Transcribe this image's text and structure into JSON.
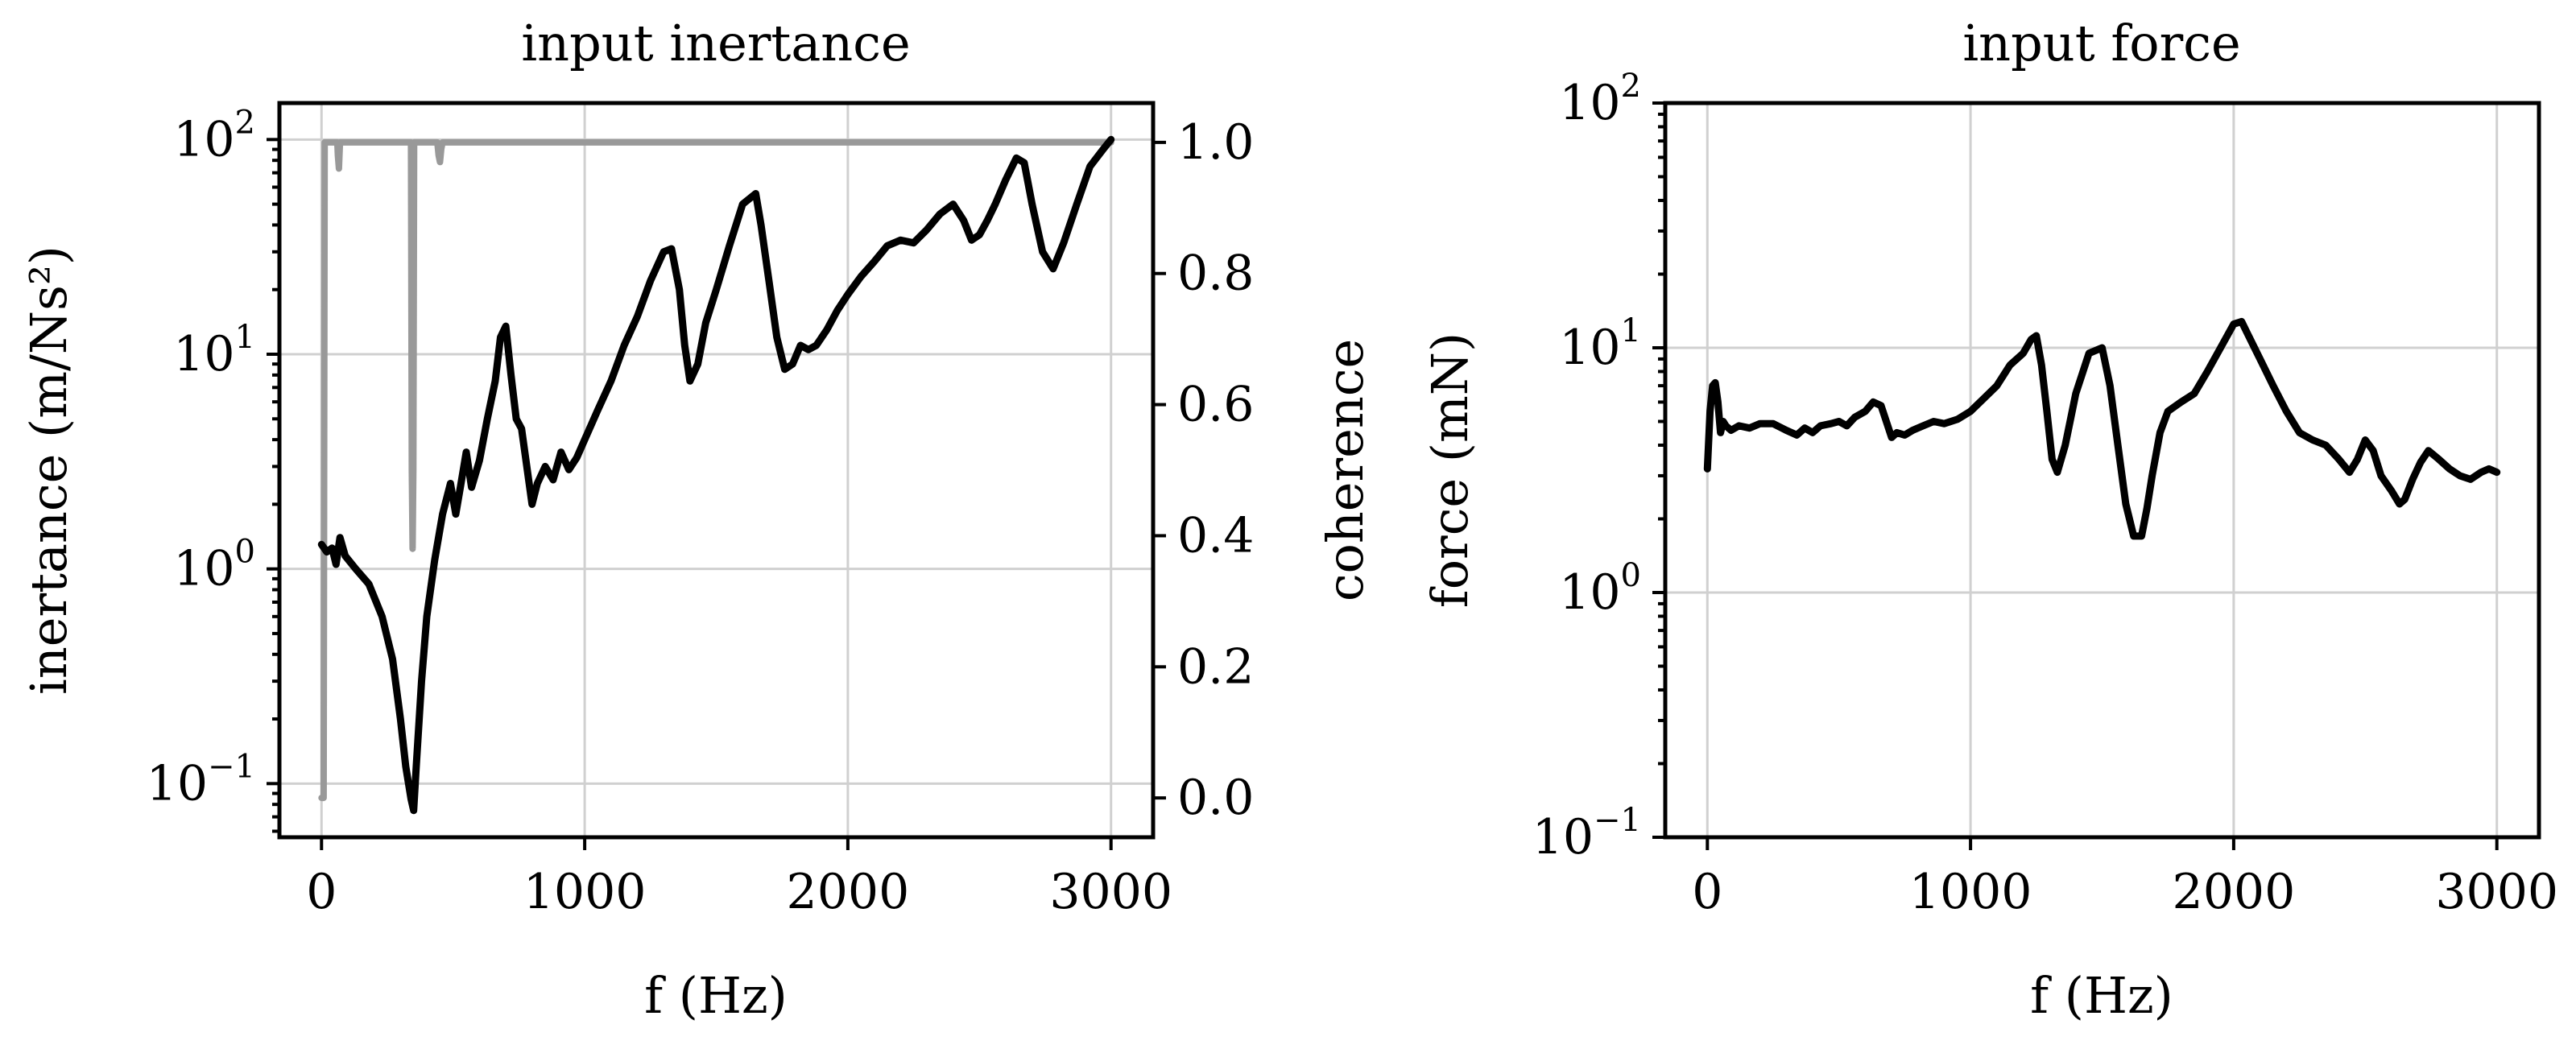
{
  "chart_data": [
    {
      "type": "line",
      "title": "input inertance",
      "xlabel": "f (Hz)",
      "ylabel": "inertance (m/Ns²)",
      "y2label": "coherence",
      "xlim": [
        -160,
        3160
      ],
      "ylim_log10": [
        -1.25,
        2.17
      ],
      "y2lim": [
        -0.06,
        1.06
      ],
      "yscale": "log",
      "grid": true,
      "xticks": [
        0,
        1000,
        2000,
        3000
      ],
      "xtick_labels": [
        "0",
        "1000",
        "2000",
        "3000"
      ],
      "yticks_log10": [
        -1,
        0,
        1,
        2
      ],
      "ytick_labels": [
        {
          "base": "10",
          "exp": "−1"
        },
        {
          "base": "10",
          "exp": "0"
        },
        {
          "base": "10",
          "exp": "1"
        },
        {
          "base": "10",
          "exp": "2"
        }
      ],
      "y2ticks": [
        0.0,
        0.2,
        0.4,
        0.6,
        0.8,
        1.0
      ],
      "y2tick_labels": [
        "0.0",
        "0.2",
        "0.4",
        "0.6",
        "0.8",
        "1.0"
      ],
      "series": [
        {
          "color": "#000000",
          "axis": "left",
          "x": [
            0,
            20,
            40,
            55,
            70,
            90,
            130,
            180,
            230,
            270,
            300,
            320,
            340,
            350,
            360,
            380,
            400,
            430,
            460,
            490,
            510,
            530,
            550,
            570,
            600,
            630,
            660,
            680,
            700,
            720,
            740,
            760,
            780,
            800,
            820,
            850,
            880,
            910,
            940,
            970,
            1000,
            1050,
            1100,
            1150,
            1200,
            1250,
            1300,
            1330,
            1360,
            1380,
            1400,
            1430,
            1460,
            1500,
            1550,
            1600,
            1650,
            1670,
            1700,
            1730,
            1760,
            1790,
            1820,
            1850,
            1880,
            1920,
            1960,
            2000,
            2050,
            2100,
            2150,
            2200,
            2250,
            2300,
            2350,
            2400,
            2440,
            2470,
            2500,
            2530,
            2560,
            2600,
            2640,
            2670,
            2700,
            2740,
            2780,
            2820,
            2870,
            2920,
            2970,
            3000
          ],
          "y": [
            1.3,
            1.2,
            1.25,
            1.05,
            1.4,
            1.15,
            1.0,
            0.85,
            0.6,
            0.38,
            0.2,
            0.12,
            0.085,
            0.075,
            0.12,
            0.3,
            0.6,
            1.1,
            1.8,
            2.5,
            1.8,
            2.5,
            3.5,
            2.4,
            3.2,
            5.0,
            7.5,
            12.0,
            13.5,
            8.0,
            5.0,
            4.5,
            3.0,
            2.0,
            2.5,
            3.0,
            2.6,
            3.5,
            2.9,
            3.3,
            4.0,
            5.5,
            7.5,
            11.0,
            15.0,
            22.0,
            30.0,
            31.0,
            20.0,
            11.0,
            7.5,
            9.0,
            14.0,
            20.0,
            32.0,
            50.0,
            56.0,
            40.0,
            22.0,
            12.0,
            8.5,
            9.0,
            11.0,
            10.5,
            11.0,
            13.0,
            16.0,
            19.0,
            23.0,
            27.0,
            32.0,
            34.0,
            33.0,
            38.0,
            45.0,
            50.0,
            42.0,
            34.0,
            36.0,
            42.0,
            50.0,
            65.0,
            82.0,
            78.0,
            50.0,
            30.0,
            25.0,
            33.0,
            50.0,
            75.0,
            90.0,
            100.0
          ]
        },
        {
          "color": "#999999",
          "axis": "right",
          "x": [
            0,
            8,
            12,
            60,
            62,
            66,
            70,
            300,
            340,
            343,
            346,
            349,
            352,
            356,
            360,
            440,
            445,
            450,
            455,
            460,
            3000
          ],
          "y": [
            0.0,
            0.0,
            1.0,
            1.0,
            0.98,
            0.96,
            1.0,
            1.0,
            1.0,
            0.5,
            0.38,
            0.5,
            1.0,
            1.0,
            1.0,
            1.0,
            0.98,
            0.97,
            0.99,
            1.0,
            1.0
          ]
        }
      ]
    },
    {
      "type": "line",
      "title": "input force",
      "xlabel": "f (Hz)",
      "ylabel": "force (mN)",
      "xlim": [
        -160,
        3160
      ],
      "ylim_log10": [
        -1,
        2
      ],
      "yscale": "log",
      "grid": true,
      "xticks": [
        0,
        1000,
        2000,
        3000
      ],
      "xtick_labels": [
        "0",
        "1000",
        "2000",
        "3000"
      ],
      "yticks_log10": [
        -1,
        0,
        1,
        2
      ],
      "ytick_labels": [
        {
          "base": "10",
          "exp": "−1"
        },
        {
          "base": "10",
          "exp": "0"
        },
        {
          "base": "10",
          "exp": "1"
        },
        {
          "base": "10",
          "exp": "2"
        }
      ],
      "series": [
        {
          "color": "#000000",
          "axis": "left",
          "x": [
            0,
            10,
            20,
            30,
            40,
            50,
            60,
            70,
            90,
            120,
            160,
            200,
            250,
            300,
            340,
            370,
            400,
            430,
            470,
            500,
            530,
            560,
            600,
            630,
            660,
            680,
            700,
            720,
            750,
            780,
            820,
            860,
            900,
            950,
            1000,
            1050,
            1100,
            1150,
            1200,
            1230,
            1250,
            1270,
            1290,
            1310,
            1330,
            1360,
            1400,
            1450,
            1500,
            1530,
            1560,
            1590,
            1620,
            1650,
            1670,
            1690,
            1720,
            1750,
            1800,
            1850,
            1900,
            1950,
            2000,
            2030,
            2060,
            2100,
            2150,
            2200,
            2250,
            2300,
            2350,
            2400,
            2440,
            2470,
            2500,
            2530,
            2560,
            2600,
            2630,
            2650,
            2680,
            2710,
            2740,
            2780,
            2820,
            2860,
            2900,
            2940,
            2970,
            3000
          ],
          "y": [
            3.2,
            5.5,
            7.0,
            7.2,
            6.0,
            4.5,
            5.0,
            4.8,
            4.6,
            4.8,
            4.7,
            4.9,
            4.9,
            4.6,
            4.4,
            4.7,
            4.5,
            4.8,
            4.9,
            5.0,
            4.8,
            5.2,
            5.5,
            6.0,
            5.8,
            5.0,
            4.3,
            4.5,
            4.4,
            4.6,
            4.8,
            5.0,
            4.9,
            5.1,
            5.5,
            6.2,
            7.0,
            8.5,
            9.5,
            10.8,
            11.2,
            8.5,
            5.5,
            3.5,
            3.1,
            4.0,
            6.5,
            9.5,
            10.0,
            7.0,
            4.0,
            2.3,
            1.7,
            1.7,
            2.2,
            3.0,
            4.5,
            5.5,
            6.0,
            6.5,
            8.0,
            10.0,
            12.5,
            12.8,
            11.0,
            9.0,
            7.0,
            5.5,
            4.5,
            4.2,
            4.0,
            3.5,
            3.1,
            3.5,
            4.2,
            3.8,
            3.0,
            2.6,
            2.3,
            2.4,
            2.9,
            3.4,
            3.8,
            3.5,
            3.2,
            3.0,
            2.9,
            3.1,
            3.2,
            3.1
          ]
        }
      ]
    }
  ]
}
